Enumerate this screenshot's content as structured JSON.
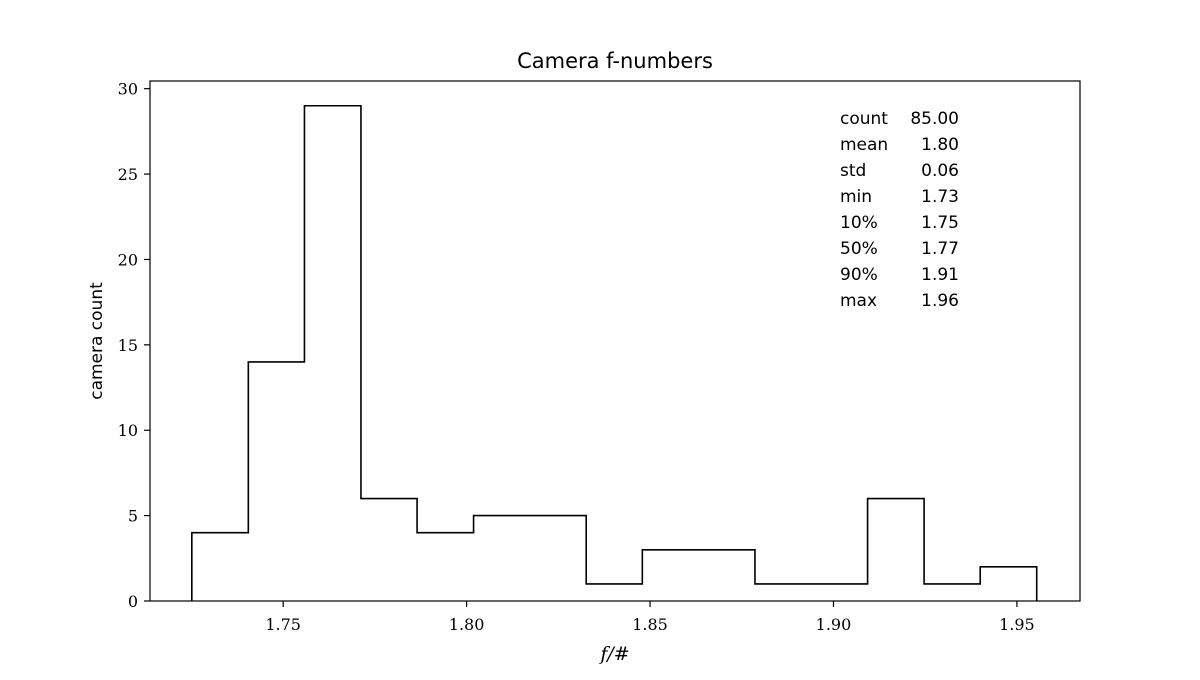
{
  "chart_data": {
    "type": "bar",
    "subtype": "histogram-step",
    "title": "Camera f-numbers",
    "xlabel": "f/#",
    "ylabel": "camera count",
    "xlim": [
      1.7137,
      1.9672
    ],
    "ylim": [
      0,
      30.45
    ],
    "x_ticks": [
      "1.75",
      "1.80",
      "1.85",
      "1.90",
      "1.95"
    ],
    "x_tick_values": [
      1.75,
      1.8,
      1.85,
      1.9,
      1.95
    ],
    "y_ticks": [
      "0",
      "5",
      "10",
      "15",
      "20",
      "25",
      "30"
    ],
    "y_tick_values": [
      0,
      5,
      10,
      15,
      20,
      25,
      30
    ],
    "bin_edges": [
      1.7251,
      1.7405,
      1.7558,
      1.7712,
      1.7865,
      1.8019,
      1.8172,
      1.8326,
      1.8479,
      1.8633,
      1.8786,
      1.894,
      1.9093,
      1.9247,
      1.94,
      1.9554
    ],
    "counts": [
      4,
      14,
      29,
      6,
      4,
      5,
      5,
      1,
      3,
      3,
      1,
      1,
      6,
      1,
      2
    ],
    "grid": false,
    "legend": "none",
    "line_color": "#000000",
    "stats": [
      {
        "label": "count",
        "value": "85.00"
      },
      {
        "label": "mean",
        "value": "1.80"
      },
      {
        "label": "std",
        "value": "0.06"
      },
      {
        "label": "min",
        "value": "1.73"
      },
      {
        "label": "10%",
        "value": "1.75"
      },
      {
        "label": "50%",
        "value": "1.77"
      },
      {
        "label": "90%",
        "value": "1.91"
      },
      {
        "label": "max",
        "value": "1.96"
      }
    ]
  }
}
